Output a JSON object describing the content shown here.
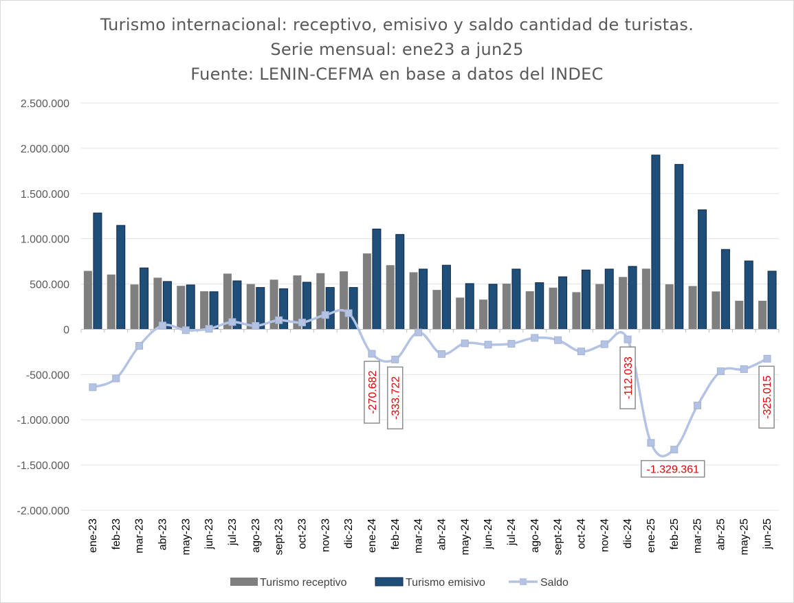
{
  "chart_data": {
    "type": "bar",
    "title": "Turismo internacional: receptivo, emisivo y saldo cantidad de turistas.",
    "subtitle": "Serie mensual: ene23 a jun25",
    "source": "Fuente: LENIN-CEFMA en base a datos del INDEC",
    "categories": [
      "ene-23",
      "feb-23",
      "mar-23",
      "abr-23",
      "may-23",
      "jun-23",
      "jul-23",
      "ago-23",
      "sept-23",
      "oct-23",
      "nov-23",
      "dic-23",
      "ene-24",
      "feb-24",
      "mar-24",
      "abr-24",
      "may-24",
      "jun-24",
      "jul-24",
      "ago-24",
      "sept-24",
      "oct-24",
      "nov-24",
      "dic-24",
      "ene-25",
      "feb-25",
      "mar-25",
      "abr-25",
      "may-25",
      "jun-25"
    ],
    "ylim": [
      -2000000,
      2500000
    ],
    "yticks": [
      {
        "value": 2500000,
        "label": "2.500.000"
      },
      {
        "value": 2000000,
        "label": "2.000.000"
      },
      {
        "value": 1500000,
        "label": "1.500.000"
      },
      {
        "value": 1000000,
        "label": "1.000.000"
      },
      {
        "value": 500000,
        "label": "500.000"
      },
      {
        "value": 0,
        "label": "0"
      },
      {
        "value": -500000,
        "label": "-500.000"
      },
      {
        "value": -1000000,
        "label": "-1.000.000"
      },
      {
        "value": -1500000,
        "label": "-1.500.000"
      },
      {
        "value": -2000000,
        "label": "-2.000.000"
      }
    ],
    "grid": true,
    "legend_position": "bottom",
    "series": [
      {
        "name": "Turismo receptivo",
        "kind": "bar",
        "color": "#7f7f7f",
        "values": [
          645000,
          605000,
          495000,
          570000,
          480000,
          420000,
          615000,
          500000,
          548000,
          595000,
          620000,
          640000,
          838000,
          708000,
          630000,
          435000,
          350000,
          328000,
          505000,
          420000,
          460000,
          410000,
          500000,
          578000,
          670000,
          497000,
          478000,
          418000,
          315000,
          315000
        ]
      },
      {
        "name": "Turismo emisivo",
        "kind": "bar",
        "color": "#1f4e79",
        "values": [
          1285000,
          1148000,
          678000,
          528000,
          490000,
          415000,
          535000,
          462000,
          448000,
          520000,
          462000,
          462000,
          1108000,
          1048000,
          665000,
          708000,
          505000,
          498000,
          665000,
          515000,
          580000,
          655000,
          665000,
          695000,
          1925000,
          1822000,
          1320000,
          882000,
          755000,
          642000
        ]
      },
      {
        "name": "Saldo",
        "kind": "line",
        "color": "#b4c3e3",
        "values": [
          -640000,
          -543000,
          -183000,
          42000,
          -10000,
          5000,
          80000,
          38000,
          100000,
          75000,
          158000,
          178000,
          -270682,
          -333722,
          -35000,
          -273000,
          -155000,
          -170000,
          -160000,
          -95000,
          -120000,
          -245000,
          -165000,
          -112033,
          -1255000,
          -1329361,
          -842000,
          -464000,
          -440000,
          -325015
        ]
      }
    ],
    "data_labels": [
      {
        "index": 12,
        "text": "-270.682",
        "orientation": "vertical"
      },
      {
        "index": 13,
        "text": "-333.722",
        "orientation": "vertical"
      },
      {
        "index": 23,
        "text": "-112.033",
        "orientation": "vertical"
      },
      {
        "index": 25,
        "text": "-1.329.361",
        "orientation": "horizontal"
      },
      {
        "index": 29,
        "text": "-325.015",
        "orientation": "vertical"
      }
    ]
  }
}
